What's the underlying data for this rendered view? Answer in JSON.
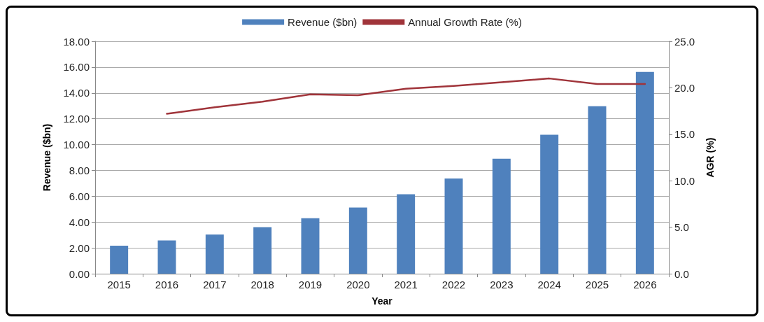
{
  "chart_data": {
    "type": "bar",
    "xlabel": "Year",
    "ylabel": "Revenue ($bn)",
    "y2label": "AGR (%)",
    "categories": [
      "2015",
      "2016",
      "2017",
      "2018",
      "2019",
      "2020",
      "2021",
      "2022",
      "2023",
      "2024",
      "2025",
      "2026"
    ],
    "series": [
      {
        "name": "Revenue ($bn)",
        "color": "#4f81bd",
        "values": [
          2.17,
          2.58,
          3.04,
          3.6,
          4.29,
          5.12,
          6.16,
          7.38,
          8.91,
          10.76,
          12.97,
          15.63
        ]
      },
      {
        "name": "Annual Growth Rate (%)",
        "type": "line",
        "axis": "y2",
        "color": "#a0343a",
        "values": [
          null,
          17.2,
          17.9,
          18.5,
          19.3,
          19.2,
          19.9,
          20.2,
          20.6,
          21.0,
          20.4,
          20.4
        ]
      }
    ],
    "ylim": [
      0,
      18
    ],
    "yticks": [
      {
        "value": 0,
        "label": "0.00"
      },
      {
        "value": 2,
        "label": "2.00"
      },
      {
        "value": 4,
        "label": "4.00"
      },
      {
        "value": 6,
        "label": "6.00"
      },
      {
        "value": 8,
        "label": "8.00"
      },
      {
        "value": 10,
        "label": "10.00"
      },
      {
        "value": 12,
        "label": "12.00"
      },
      {
        "value": 14,
        "label": "14.00"
      },
      {
        "value": 16,
        "label": "16.00"
      },
      {
        "value": 18,
        "label": "18.00"
      }
    ],
    "y2lim": [
      0,
      25
    ],
    "y2ticks": [
      {
        "value": 0,
        "label": "0.0"
      },
      {
        "value": 5,
        "label": "5.0"
      },
      {
        "value": 10,
        "label": "10.0"
      },
      {
        "value": 15,
        "label": "15.0"
      },
      {
        "value": 20,
        "label": "20.0"
      },
      {
        "value": 25,
        "label": "25.0"
      }
    ],
    "grid": "y",
    "legend": "top",
    "marker": "none",
    "line_style": "solid"
  }
}
